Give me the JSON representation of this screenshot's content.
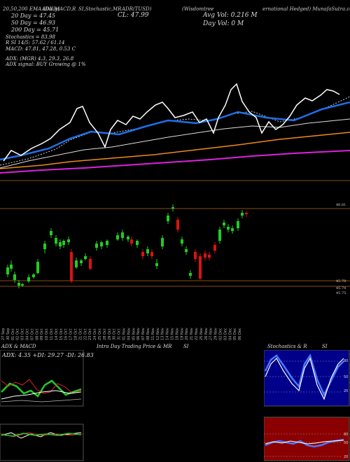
{
  "header": {
    "left": "20,50,200 EMA (Daily)",
    "mid1": "ADX,MACD,R",
    "mid2": "SI,Stochastic,MR",
    "mid3": "ADR(TUSD)",
    "right1": "(Wisdomtree",
    "right2": "ernational Hedged) MunafaSutra.com"
  },
  "indicators": {
    "ema20": "20 Day = 47.45",
    "ema50": "50 Day = 46.93",
    "ema200": "200 Day = 45.71",
    "stoch": "Stochastics = 83.98",
    "rsi": "R                    SI 14/5: 57.62 / 61.14",
    "macd": "MACD: 47.81, 47.28, 0.53 C",
    "adx": "ADX:                         (MGR) 4.3, 29.3, 26.8",
    "signal": "ADX  signal:                                      BUY Growing @ 1%",
    "cl": "CL: 47.99",
    "avgvol": "Avg Vol: 0.216  M",
    "dayvol": "Day Vol: 0   M"
  },
  "price_labels": {
    "top": "48.81",
    "l1": "45.78",
    "l2": "45.74",
    "l3": "45.75"
  },
  "dates": [
    "27 Sep",
    "30 Sep",
    "01 Oct",
    "02 Oct",
    "03 Oct",
    "04 Oct",
    "07 Oct",
    "08 Oct",
    "09 Oct",
    "10 Oct",
    "11 Oct",
    "14 Oct",
    "15 Oct",
    "16 Oct",
    "17 Oct",
    "18 Oct",
    "21 Oct",
    "22 Oct",
    "23 Oct",
    "24 Oct",
    "25 Oct",
    "28 Oct",
    "29 Oct",
    "30 Oct",
    "31 Oct",
    "01 Nov",
    "04 Nov",
    "05 Nov",
    "06 Nov",
    "07 Nov",
    "08 Nov",
    "11 Nov",
    "12 Nov",
    "13 Nov",
    "14 Nov",
    "15 Nov",
    "18 Nov",
    "19 Nov",
    "20 Nov",
    "21 Nov",
    "22 Nov",
    "25 Nov",
    "26 Nov",
    "27 Nov",
    "29 Nov",
    "02 Dec",
    "03 Dec",
    "04 Dec",
    "05 Dec",
    "06 Dec"
  ],
  "panels": {
    "adx_title": "ADX  & MACD",
    "adx_values": "ADX: 4.35  +DI: 29.27  -DI: 26.83",
    "intra_title": "Intra  Day Trading Price  & MR",
    "intra_si": "SI",
    "stoch_title": "Stochastics & R",
    "stoch_si": "SI",
    "stoch_ticks": [
      "80",
      "50",
      "20"
    ],
    "rsi_ticks": [
      "80",
      "50",
      "20"
    ]
  },
  "colors": {
    "bull": "#22cc22",
    "bear": "#dd1111",
    "ema20": "#1e6fe8",
    "ema50": "#f08a18",
    "ema200": "#dd22dd",
    "price": "#ffffff"
  }
}
